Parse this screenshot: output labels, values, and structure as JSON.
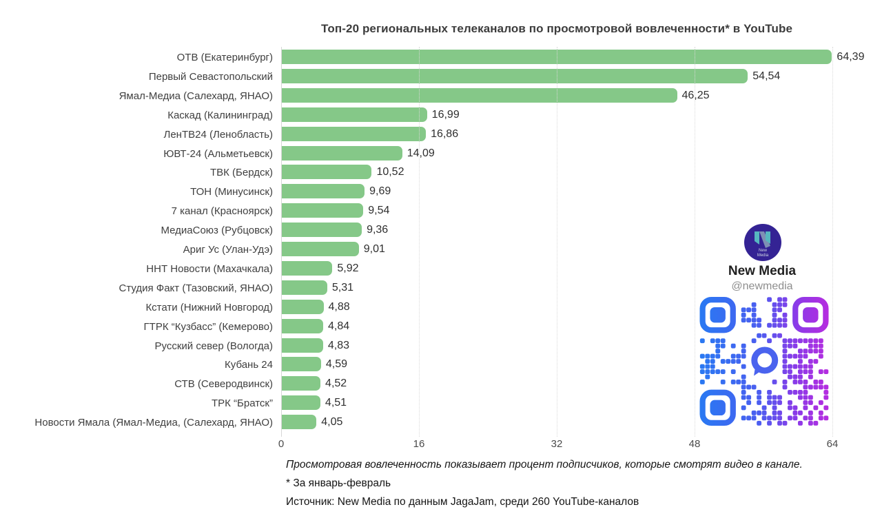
{
  "chart_data": {
    "type": "bar",
    "orientation": "horizontal",
    "title": "Топ-20 региональных телеканалов по просмотровой вовлеченности* в YouTube",
    "categories": [
      "ОТВ (Екатеринбург)",
      "Первый Севастопольский",
      "Ямал-Медиа (Салехард, ЯНАО)",
      "Каскад (Калининград)",
      "ЛенТВ24 (Ленобласть)",
      "ЮВТ-24 (Альметьевск)",
      "ТВК (Бердск)",
      "ТОН (Минусинск)",
      "7 канал (Красноярск)",
      "МедиаСоюз (Рубцовск)",
      "Ариг Ус (Улан-Удэ)",
      "ННТ Новости (Махачкала)",
      "Студия Факт (Тазовский, ЯНАО)",
      "Кстати (Нижний Новгород)",
      "ГТРК “Кузбасс” (Кемерово)",
      "Русский север (Вологда)",
      "Кубань 24",
      "СТВ (Северодвинск)",
      "ТРК “Братск”",
      "Новости Ямала (Ямал-Медиа, (Салехард, ЯНАО)"
    ],
    "values": [
      64.39,
      54.54,
      46.25,
      16.99,
      16.86,
      14.09,
      10.52,
      9.69,
      9.54,
      9.36,
      9.01,
      5.92,
      5.31,
      4.88,
      4.84,
      4.83,
      4.59,
      4.52,
      4.51,
      4.05
    ],
    "value_labels": [
      "64,39",
      "54,54",
      "46,25",
      "16,99",
      "16,86",
      "14,09",
      "10,52",
      "9,69",
      "9,54",
      "9,36",
      "9,01",
      "5,92",
      "5,31",
      "4,88",
      "4,84",
      "4,83",
      "4,59",
      "4,52",
      "4,51",
      "4,05"
    ],
    "xlim": [
      0,
      64
    ],
    "x_ticks": [
      0,
      16,
      32,
      48,
      64
    ],
    "grid": "vertical-dotted",
    "legend": "none",
    "bar_color": "#85C888"
  },
  "footnotes": {
    "line1": "Просмотровая вовлеченность показывает процент подписчиков, которые смотрят видео в канале.",
    "line2": "* За январь-февраль",
    "line3": "Источник: New Media по данным JagaJam, среди 260 YouTube-каналов"
  },
  "badge": {
    "name": "New Media",
    "handle": "@newmedia",
    "logo_line1": "New",
    "logo_line2": "Media"
  },
  "colors": {
    "bar": "#85C888",
    "title_text": "#3C3C3C",
    "grid": "#D9D9D9",
    "logo_circle": "#342394",
    "logo_accent_teal": "#57B7C0",
    "logo_accent_slate": "#7E90B4",
    "qr_blue": "#2979F2",
    "qr_mid": "#6A4DF0",
    "qr_purple": "#B62DDF",
    "qr_center_icon": "#4A63EE"
  }
}
